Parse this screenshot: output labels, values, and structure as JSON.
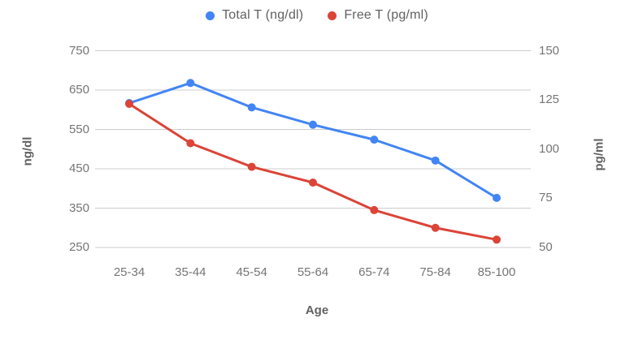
{
  "chart_data": {
    "type": "line",
    "categories": [
      "25-34",
      "35-44",
      "45-54",
      "55-64",
      "65-74",
      "75-84",
      "85-100"
    ],
    "series": [
      {
        "name": "Total T (ng/dl)",
        "axis": "left",
        "color": "#4285f4",
        "values": [
          617,
          668,
          606,
          562,
          524,
          471,
          376
        ]
      },
      {
        "name": "Free T (pg/ml)",
        "axis": "right",
        "color": "#db4437",
        "values": [
          123,
          103,
          91,
          83,
          69,
          60,
          54
        ]
      }
    ],
    "left_axis": {
      "title": "ng/dl",
      "min": 250,
      "max": 750,
      "ticks": [
        750,
        650,
        550,
        450,
        350,
        250
      ]
    },
    "right_axis": {
      "title": "pg/ml",
      "min": 50,
      "max": 150,
      "ticks": [
        150,
        125,
        100,
        75,
        50
      ]
    },
    "x_axis": {
      "title": "Age"
    },
    "legend_position": "top",
    "grid": true,
    "colors": {
      "gridline": "#cccccc",
      "tick_text": "#757575",
      "axis_title_text": "#616161",
      "legend_text": "#616161",
      "background": "#ffffff"
    }
  }
}
